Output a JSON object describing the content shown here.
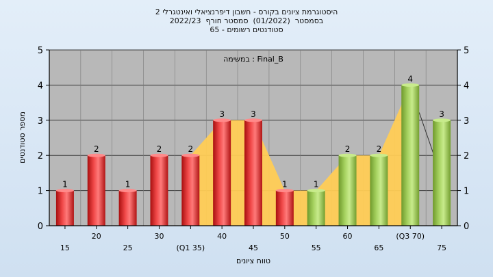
{
  "chart_data": {
    "type": "bar",
    "title_lines": [
      "היסטוגרמת ציונים בקורס - חשבון דיפרנציאלי ואינטגרלי 2",
      "בסמסטר  (01/2022)  סמסטר חורף  2022/23",
      "סטודנטים רשומים - 65"
    ],
    "legend_label": "Final_B : במשימה",
    "categories": [
      "15",
      "20",
      "25",
      "30",
      "(Q1 35)",
      "40",
      "45",
      "50",
      "55",
      "60",
      "65",
      "(Q3 70)",
      "75"
    ],
    "values": [
      1,
      2,
      1,
      2,
      2,
      3,
      3,
      1,
      1,
      2,
      2,
      4,
      3
    ],
    "bar_colors": [
      "red",
      "red",
      "red",
      "red",
      "red",
      "red",
      "red",
      "red",
      "green",
      "green",
      "green",
      "green",
      "green"
    ],
    "iqr_band": {
      "from_index": 4,
      "to_index": 11,
      "color": "#ffcc55"
    },
    "xlabel": "טווח ציונים",
    "ylabel": "מספר סטודנטים",
    "ylim": [
      0,
      5
    ],
    "yticks": [
      0,
      1,
      2,
      3,
      4,
      5
    ],
    "grid": true,
    "legend_position": "top-center",
    "colors": {
      "red": "#e52a2a",
      "green": "#a3cf5a",
      "plot_bg": "#b8b8b8",
      "band": "#ffcc55"
    }
  }
}
